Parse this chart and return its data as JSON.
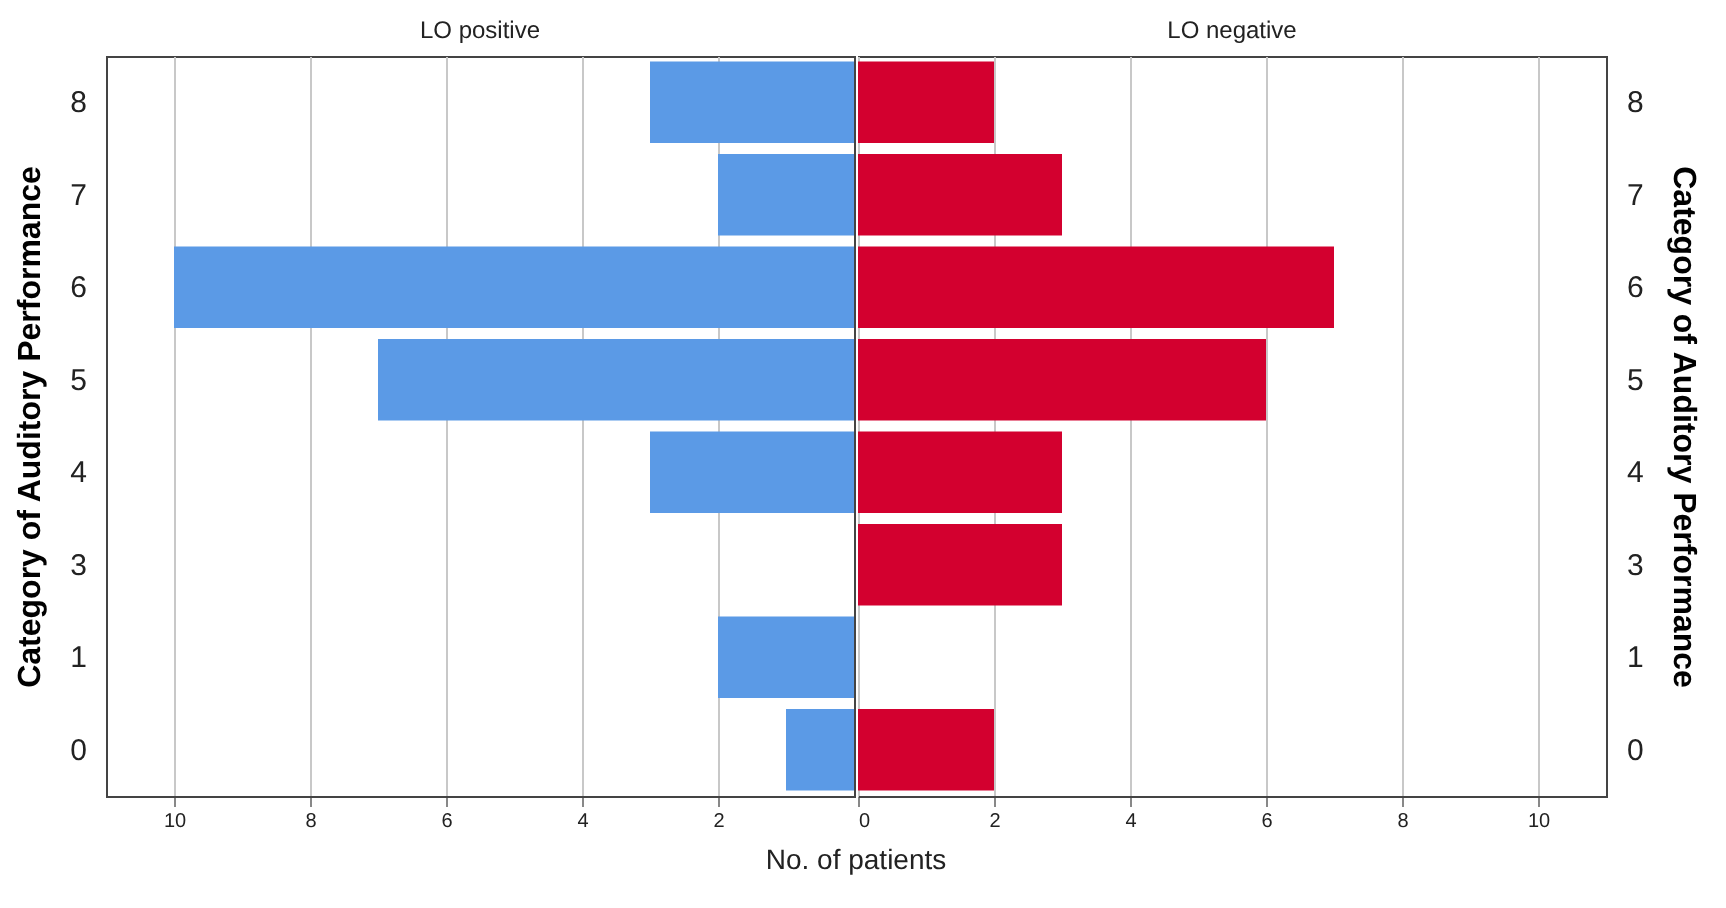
{
  "chart_data": [
    {
      "type": "bar",
      "orientation": "horizontal",
      "title": "LO positive",
      "ylabel": "Category of Auditory Performance",
      "xlabel": "No. of patients",
      "categories": [
        "8",
        "7",
        "6",
        "5",
        "4",
        "3",
        "1",
        "0"
      ],
      "series": [
        {
          "color": "#5b9ae6",
          "values": [
            3,
            2,
            10,
            7,
            3,
            null,
            2,
            1
          ]
        }
      ],
      "xlim": [
        11,
        0
      ],
      "xticks": [
        2,
        4,
        6,
        8,
        10
      ],
      "grid": "x"
    },
    {
      "type": "bar",
      "orientation": "horizontal",
      "title": "LO negative",
      "y2label": "Category of Auditory Performance",
      "categories": [
        "8",
        "7",
        "6",
        "5",
        "4",
        "3",
        "1",
        "0"
      ],
      "series": [
        {
          "color": "#d3002f",
          "values": [
            2,
            3,
            7,
            6,
            3,
            3,
            null,
            2
          ]
        }
      ],
      "xlim": [
        0,
        11
      ],
      "xticks": [
        0,
        2,
        4,
        6,
        8,
        10
      ],
      "grid": "x"
    }
  ]
}
